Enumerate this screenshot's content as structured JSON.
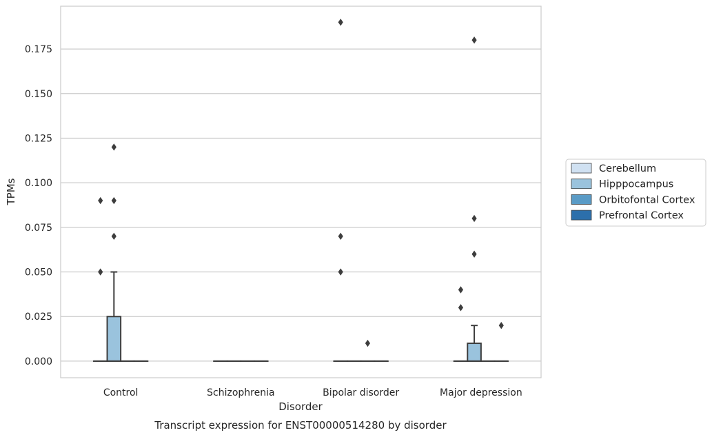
{
  "chart_data": {
    "type": "box",
    "title": "Transcript expression for ENST00000514280 by disorder",
    "xlabel": "Disorder",
    "ylabel": "TPMs",
    "ylim": [
      -0.0093,
      0.199
    ],
    "yticks": [
      0.0,
      0.025,
      0.05,
      0.075,
      0.1,
      0.125,
      0.15,
      0.175
    ],
    "ytick_labels": [
      "0.000",
      "0.025",
      "0.050",
      "0.075",
      "0.100",
      "0.125",
      "0.150",
      "0.175"
    ],
    "grid": true,
    "legend_position": "right",
    "categories": [
      "Control",
      "Schizophrenia",
      "Bipolar disorder",
      "Major depression"
    ],
    "series": [
      {
        "name": "Cerebellum",
        "color": "#d0e1f2",
        "boxes": [
          {
            "q1": 0,
            "median": 0,
            "q3": 0,
            "whisker_low": 0,
            "whisker_high": 0,
            "outliers": [
              0.05,
              0.09
            ]
          },
          {
            "q1": 0,
            "median": 0,
            "q3": 0,
            "whisker_low": 0,
            "whisker_high": 0,
            "outliers": []
          },
          {
            "q1": 0,
            "median": 0,
            "q3": 0,
            "whisker_low": 0,
            "whisker_high": 0,
            "outliers": [
              0.05,
              0.07,
              0.19
            ]
          },
          {
            "q1": 0,
            "median": 0,
            "q3": 0,
            "whisker_low": 0,
            "whisker_high": 0,
            "outliers": [
              0.03,
              0.04
            ]
          }
        ]
      },
      {
        "name": "Hipppocampus",
        "color": "#9ac3dd",
        "boxes": [
          {
            "q1": 0,
            "median": 0,
            "q3": 0.025,
            "whisker_low": 0,
            "whisker_high": 0.05,
            "outliers": [
              0.07,
              0.09,
              0.12
            ]
          },
          {
            "q1": 0,
            "median": 0,
            "q3": 0,
            "whisker_low": 0,
            "whisker_high": 0,
            "outliers": []
          },
          {
            "q1": 0,
            "median": 0,
            "q3": 0,
            "whisker_low": 0,
            "whisker_high": 0,
            "outliers": []
          },
          {
            "q1": 0,
            "median": 0,
            "q3": 0.01,
            "whisker_low": 0,
            "whisker_high": 0.02,
            "outliers": [
              0.06,
              0.08,
              0.18
            ]
          }
        ]
      },
      {
        "name": "Orbitofontal Cortex",
        "color": "#5a9bc6",
        "boxes": [
          {
            "q1": 0,
            "median": 0,
            "q3": 0,
            "whisker_low": 0,
            "whisker_high": 0,
            "outliers": []
          },
          {
            "q1": 0,
            "median": 0,
            "q3": 0,
            "whisker_low": 0,
            "whisker_high": 0,
            "outliers": []
          },
          {
            "q1": 0,
            "median": 0,
            "q3": 0,
            "whisker_low": 0,
            "whisker_high": 0,
            "outliers": [
              0.01
            ]
          },
          {
            "q1": 0,
            "median": 0,
            "q3": 0,
            "whisker_low": 0,
            "whisker_high": 0,
            "outliers": []
          }
        ]
      },
      {
        "name": "Prefrontal Cortex",
        "color": "#2c6fab",
        "boxes": [
          {
            "q1": 0,
            "median": 0,
            "q3": 0,
            "whisker_low": 0,
            "whisker_high": 0,
            "outliers": []
          },
          {
            "q1": 0,
            "median": 0,
            "q3": 0,
            "whisker_low": 0,
            "whisker_high": 0,
            "outliers": []
          },
          {
            "q1": 0,
            "median": 0,
            "q3": 0,
            "whisker_low": 0,
            "whisker_high": 0,
            "outliers": []
          },
          {
            "q1": 0,
            "median": 0,
            "q3": 0,
            "whisker_low": 0,
            "whisker_high": 0,
            "outliers": [
              0.02
            ]
          }
        ]
      }
    ]
  }
}
